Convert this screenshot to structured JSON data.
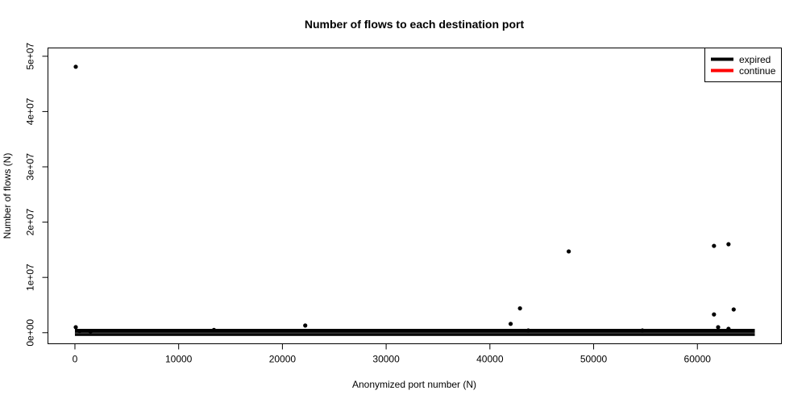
{
  "chart_data": {
    "type": "scatter",
    "title": "Number of flows to each destination port",
    "xlabel": "Anonymized port number (N)",
    "ylabel": "Number of flows (N)",
    "xlim": [
      -2600,
      68100
    ],
    "ylim": [
      -2000000,
      51500000
    ],
    "x_ticks": [
      0,
      10000,
      20000,
      30000,
      40000,
      50000,
      60000
    ],
    "x_tick_labels": [
      "0",
      "10000",
      "20000",
      "30000",
      "40000",
      "50000",
      "60000"
    ],
    "y_ticks": [
      0,
      10000000,
      20000000,
      30000000,
      40000000,
      50000000
    ],
    "y_tick_labels": [
      "0e+00",
      "1e+07",
      "2e+07",
      "3e+07",
      "4e+07",
      "5e+07"
    ],
    "grid": false,
    "legend_position": "top-right",
    "series": [
      {
        "name": "expired",
        "color": "#000000",
        "baseline": {
          "x_range": [
            0,
            65535
          ],
          "y_range": [
            0,
            400000
          ]
        },
        "points": [
          {
            "x": 80,
            "y": 48100000
          },
          {
            "x": 80,
            "y": 1000000
          },
          {
            "x": 443,
            "y": 300000
          },
          {
            "x": 1500,
            "y": 200000
          },
          {
            "x": 13400,
            "y": 500000
          },
          {
            "x": 22200,
            "y": 1300000
          },
          {
            "x": 42000,
            "y": 1600000
          },
          {
            "x": 42900,
            "y": 4400000
          },
          {
            "x": 43700,
            "y": 400000
          },
          {
            "x": 47600,
            "y": 14700000
          },
          {
            "x": 54700,
            "y": 400000
          },
          {
            "x": 61600,
            "y": 15700000
          },
          {
            "x": 61600,
            "y": 3300000
          },
          {
            "x": 62000,
            "y": 1000000
          },
          {
            "x": 63000,
            "y": 16000000
          },
          {
            "x": 63000,
            "y": 700000
          },
          {
            "x": 63500,
            "y": 4200000
          }
        ]
      },
      {
        "name": "continue",
        "color": "#ff0000",
        "points": []
      }
    ]
  }
}
